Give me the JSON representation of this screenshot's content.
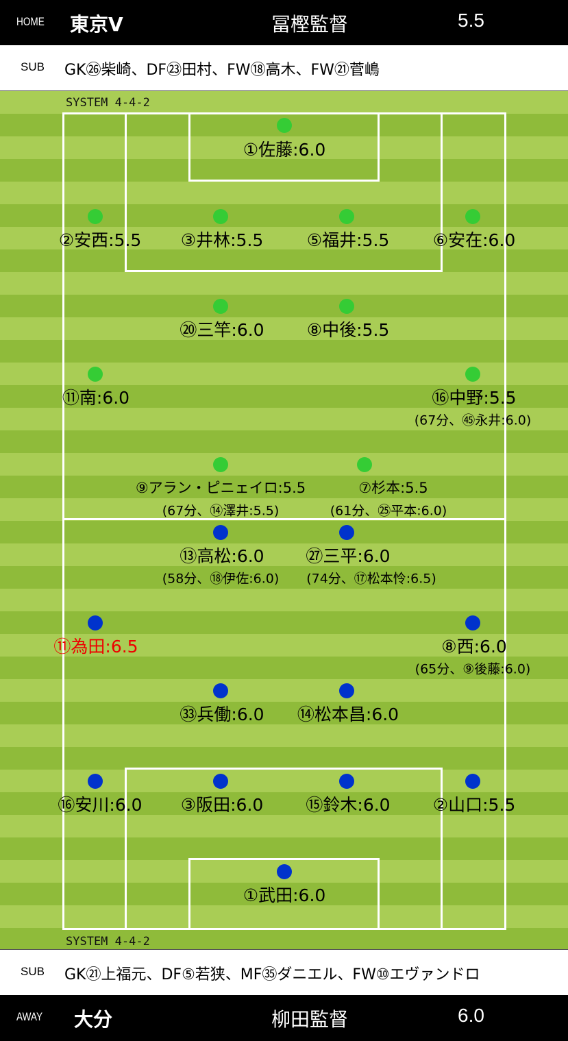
{
  "home": {
    "tag": "HOME",
    "team": "東京V",
    "coach": "冨樫監督",
    "score": "5.5",
    "sub_tag": "SUB",
    "subs": "GK㉖柴崎、DF㉓田村、FW⑱高木、FW㉑菅嶋",
    "system": "SYSTEM  4-4-2",
    "players": [
      "①佐藤:6.0",
      "②安西:5.5",
      "③井林:5.5",
      "⑤福井:5.5",
      "⑥安在:6.0",
      "⑳三竿:6.0",
      "⑧中後:5.5",
      "⑪南:6.0",
      "⑯中野:5.5",
      "⑨アラン・ピニェイロ:5.5",
      "⑦杉本:5.5"
    ],
    "replacements": [
      "(67分、㊺永井:6.0)",
      "(67分、⑭澤井:5.5)",
      "(61分、㉕平本:6.0)"
    ],
    "dot_color": "#35cc35"
  },
  "away": {
    "tag": "AWAY",
    "team": "大分",
    "coach": "柳田監督",
    "score": "6.0",
    "sub_tag": "SUB",
    "subs": "GK㉑上福元、DF⑤若狭、MF㉟ダニエル、FW⑩エヴァンドロ",
    "system": "SYSTEM  4-4-2",
    "players": [
      "⑬高松:6.0",
      "㉗三平:6.0",
      "⑪為田:6.5",
      "⑧西:6.0",
      "㉝兵働:6.0",
      "⑭松本昌:6.0",
      "⑯安川:6.0",
      "③阪田:6.0",
      "⑮鈴木:6.0",
      "②山口:5.5",
      "①武田:6.0"
    ],
    "replacements": [
      "(58分、⑱伊佐:6.0)",
      "(74分、⑰松本怜:6.5)",
      "(65分、⑨後藤:6.0)"
    ],
    "dot_color": "#0033cc",
    "highlight_color": "#ee0000"
  }
}
